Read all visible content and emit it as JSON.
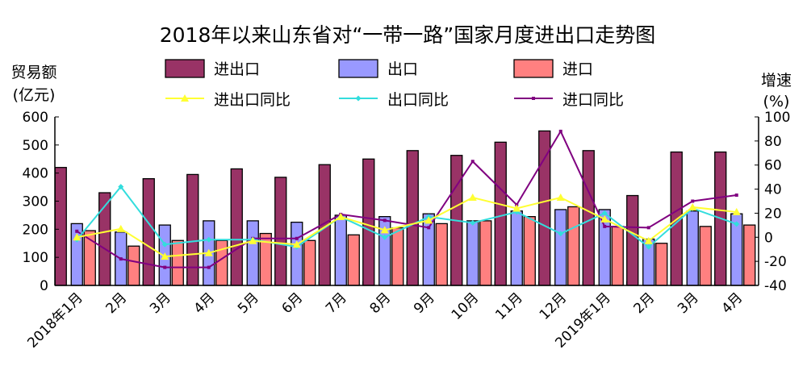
{
  "chart_data": {
    "type": "bar",
    "title": "2018年以来山东省对“一带一路”国家月度进出口走势图",
    "ylabel_left": [
      "贸易额",
      "(亿元)"
    ],
    "ylabel_right": [
      "增速",
      "(%)"
    ],
    "ylim_left": [
      0,
      600
    ],
    "yticks_left": [
      0,
      100,
      200,
      300,
      400,
      500,
      600
    ],
    "ylim_right": [
      -40,
      100
    ],
    "yticks_right": [
      -40,
      -20,
      0,
      20,
      40,
      60,
      80,
      100
    ],
    "categories": [
      "2018年1月",
      "2月",
      "3月",
      "4月",
      "5月",
      "6月",
      "7月",
      "8月",
      "9月",
      "10月",
      "11月",
      "12月",
      "2019年1月",
      "2月",
      "3月",
      "4月"
    ],
    "legend_position": "top",
    "grid": false,
    "bar_series": [
      {
        "name": "进出口",
        "color": "#993366",
        "values": [
          420,
          330,
          380,
          395,
          415,
          385,
          430,
          450,
          480,
          463,
          510,
          550,
          480,
          320,
          475,
          475
        ]
      },
      {
        "name": "出口",
        "color": "#9999FF",
        "values": [
          220,
          190,
          215,
          230,
          230,
          225,
          250,
          245,
          255,
          230,
          265,
          270,
          270,
          165,
          265,
          255
        ]
      },
      {
        "name": "进口",
        "color": "#FF8080",
        "values": [
          195,
          140,
          160,
          160,
          185,
          160,
          180,
          205,
          220,
          230,
          245,
          280,
          210,
          150,
          210,
          215
        ]
      }
    ],
    "line_series": [
      {
        "name": "进出口同比",
        "color": "#FFFF33",
        "marker": "triangle",
        "values": [
          0,
          7,
          -16,
          -13,
          -3,
          -6,
          17,
          6,
          14,
          33,
          24,
          33,
          15,
          -3,
          25,
          21
        ]
      },
      {
        "name": "出口同比",
        "color": "#33DDDD",
        "marker": "diamond",
        "values": [
          -2,
          42,
          -6,
          -2,
          -2,
          -8,
          17,
          0,
          17,
          12,
          21,
          3,
          20,
          -8,
          24,
          11
        ]
      },
      {
        "name": "进口同比",
        "color": "#800080",
        "marker": "square",
        "values": [
          5,
          -18,
          -25,
          -25,
          -1,
          -1,
          19,
          14,
          8,
          63,
          27,
          88,
          9,
          8,
          30,
          35
        ]
      }
    ]
  }
}
